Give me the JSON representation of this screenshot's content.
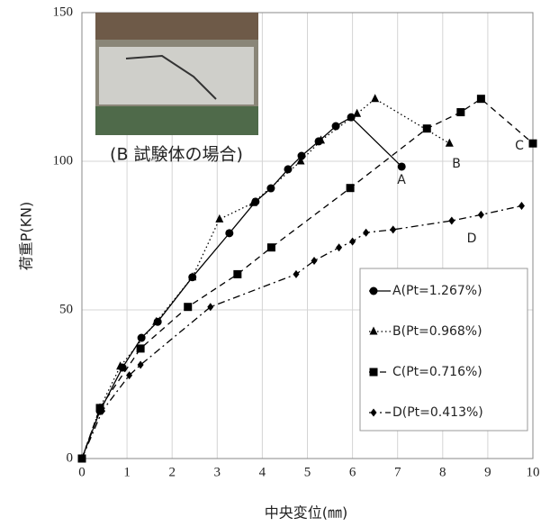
{
  "chart_data": {
    "type": "line",
    "xlabel": "中央変位(㎜)",
    "ylabel": "荷重P(KN)",
    "xlim": [
      0,
      10
    ],
    "ylim": [
      0,
      150
    ],
    "xticks": [
      0,
      1,
      2,
      3,
      4,
      5,
      6,
      7,
      8,
      9,
      10
    ],
    "yticks": [
      0,
      50,
      100,
      150
    ],
    "grid": true,
    "legend_position": "lower right",
    "image_caption": "(B 試験体の場合)",
    "annotations": [
      "A",
      "B",
      "C",
      "D"
    ],
    "series": [
      {
        "name": "A(Pt=1.267%)",
        "color": "#000000",
        "line_style": "solid",
        "marker": "circle",
        "x": [
          0,
          0.4,
          0.9,
          1.32,
          1.68,
          2.45,
          3.27,
          3.85,
          4.19,
          4.57,
          4.87,
          5.25,
          5.63,
          5.97,
          7.09
        ],
        "values": [
          0,
          16,
          30.6,
          40.6,
          46,
          61,
          75.8,
          86.4,
          90.9,
          97.3,
          101.8,
          106.7,
          111.8,
          114.8,
          98.2
        ]
      },
      {
        "name": "B(Pt=0.968%)",
        "color": "#000000",
        "line_style": "dotted",
        "marker": "triangle",
        "x": [
          0,
          0.4,
          0.85,
          1.65,
          2.45,
          3.05,
          3.8,
          4.85,
          5.3,
          6.1,
          6.5,
          8.15
        ],
        "values": [
          0,
          17,
          31,
          46,
          61,
          80.5,
          86,
          100,
          107,
          116,
          121,
          106
        ]
      },
      {
        "name": "C(Pt=0.716%)",
        "color": "#000000",
        "line_style": "dashed",
        "marker": "square",
        "x": [
          0,
          0.4,
          1.3,
          2.35,
          3.45,
          4.2,
          5.95,
          7.65,
          8.4,
          8.85,
          10
        ],
        "values": [
          0,
          17,
          37,
          51,
          62,
          71,
          91,
          111,
          116.5,
          121,
          106
        ]
      },
      {
        "name": "D(Pt=0.413%)",
        "color": "#000000",
        "line_style": "dashdot",
        "marker": "diamond",
        "x": [
          0,
          0.45,
          1.05,
          1.3,
          2.85,
          4.75,
          5.15,
          5.7,
          6,
          6.3,
          6.9,
          8.2,
          8.85,
          9.75
        ],
        "values": [
          0,
          16,
          28,
          31.5,
          51,
          62,
          66.5,
          71,
          73,
          76,
          77,
          80,
          82,
          85
        ]
      }
    ]
  }
}
